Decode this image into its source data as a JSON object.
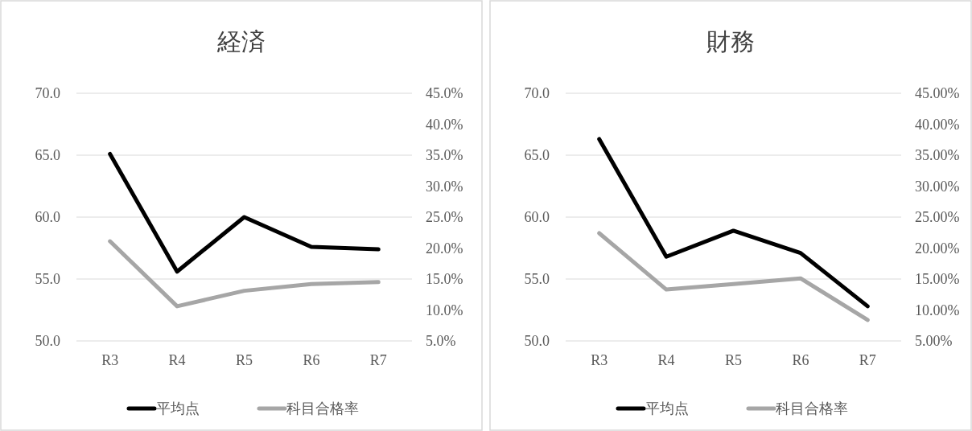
{
  "chart_data": [
    {
      "type": "line",
      "title": "経済",
      "categories": [
        "R3",
        "R4",
        "R5",
        "R6",
        "R7"
      ],
      "series": [
        {
          "name": "平均点",
          "color": "#000000",
          "values": [
            65.1,
            55.6,
            60.0,
            57.6,
            57.4
          ]
        },
        {
          "name": "科目合格率",
          "color": "#a6a6a6",
          "axis": "y2",
          "values": [
            21.1,
            10.6,
            13.1,
            14.2,
            14.5
          ]
        }
      ],
      "ylim": [
        50,
        70
      ],
      "yticks": [
        {
          "value": 50,
          "label": "50.0"
        },
        {
          "value": 55,
          "label": "55.0"
        },
        {
          "value": 60,
          "label": "60.0"
        },
        {
          "value": 65,
          "label": "65.0"
        },
        {
          "value": 70,
          "label": "70.0"
        }
      ],
      "y2lim": [
        5,
        45
      ],
      "y2ticks": [
        {
          "value": 5,
          "label": "5.0%"
        },
        {
          "value": 10,
          "label": "10.0%"
        },
        {
          "value": 15,
          "label": "15.0%"
        },
        {
          "value": 20,
          "label": "20.0%"
        },
        {
          "value": 25,
          "label": "25.0%"
        },
        {
          "value": 30,
          "label": "30.0%"
        },
        {
          "value": 35,
          "label": "35.0%"
        },
        {
          "value": 40,
          "label": "40.0%"
        },
        {
          "value": 45,
          "label": "45.0%"
        }
      ],
      "grid": "y",
      "legend": "bottom"
    },
    {
      "type": "line",
      "title": "財務",
      "categories": [
        "R3",
        "R4",
        "R5",
        "R6",
        "R7"
      ],
      "series": [
        {
          "name": "平均点",
          "color": "#000000",
          "values": [
            66.3,
            56.8,
            58.9,
            57.1,
            52.8
          ]
        },
        {
          "name": "科目合格率",
          "color": "#a6a6a6",
          "axis": "y2",
          "values": [
            22.4,
            13.3,
            14.2,
            15.1,
            8.4
          ]
        }
      ],
      "ylim": [
        50,
        70
      ],
      "yticks": [
        {
          "value": 50,
          "label": "50.0"
        },
        {
          "value": 55,
          "label": "55.0"
        },
        {
          "value": 60,
          "label": "60.0"
        },
        {
          "value": 65,
          "label": "65.0"
        },
        {
          "value": 70,
          "label": "70.0"
        }
      ],
      "y2lim": [
        5,
        45
      ],
      "y2ticks": [
        {
          "value": 5,
          "label": "5.00%"
        },
        {
          "value": 10,
          "label": "10.00%"
        },
        {
          "value": 15,
          "label": "15.00%"
        },
        {
          "value": 20,
          "label": "20.00%"
        },
        {
          "value": 25,
          "label": "25.00%"
        },
        {
          "value": 30,
          "label": "30.00%"
        },
        {
          "value": 35,
          "label": "35.00%"
        },
        {
          "value": 40,
          "label": "40.00%"
        },
        {
          "value": 45,
          "label": "45.00%"
        }
      ],
      "grid": "y",
      "legend": "bottom"
    }
  ]
}
